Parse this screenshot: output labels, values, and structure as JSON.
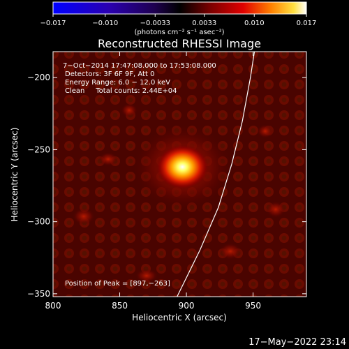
{
  "chart_data": {
    "type": "heatmap",
    "title": "Reconstructed RHESSI Image",
    "xlabel": "Heliocentric X (arcsec)",
    "ylabel": "Heliocentric Y (arcsec)",
    "xlim": [
      800,
      990
    ],
    "ylim": [
      -352,
      -182
    ],
    "xticks": [
      800,
      850,
      900,
      950
    ],
    "xtick_labels": [
      "800",
      "850",
      "900",
      "950"
    ],
    "yticks": [
      -200,
      -250,
      -300,
      -350
    ],
    "ytick_labels": [
      "−200",
      "−250",
      "−300",
      "−350"
    ],
    "colorbar": {
      "range": [
        -0.017,
        0.017
      ],
      "ticks": [
        -0.017,
        -0.01,
        -0.0033,
        0.0033,
        0.01,
        0.017
      ],
      "tick_labels": [
        "−0.017",
        "−0.010",
        "−0.0033",
        "0.0033",
        "0.010",
        "0.017"
      ],
      "units": "(photons cm⁻² s⁻¹ asec⁻²)"
    },
    "annotations": [
      "7−Oct−2014 17:47:08.000 to 17:53:08.000",
      "Detectors: 3F 6F 9F, Att 0",
      "Energy Range: 6.0 − 12.0 keV",
      "Clean     Total counts: 2.44E+04"
    ],
    "peak_label": "Position of Peak = [897,−263]",
    "peak": {
      "x": 897,
      "y": -263
    },
    "source": {
      "x": 897,
      "y": -262,
      "sigma_x": 9,
      "sigma_y": 6,
      "peak_value": 0.017
    },
    "limb_line": [
      [
        893,
        -352
      ],
      [
        910,
        -320
      ],
      [
        924,
        -290
      ],
      [
        934,
        -260
      ],
      [
        942,
        -230
      ],
      [
        948,
        -200
      ],
      [
        951,
        -182
      ]
    ],
    "grid": false
  },
  "footer": {
    "timestamp": "17−May−2022 23:14"
  }
}
